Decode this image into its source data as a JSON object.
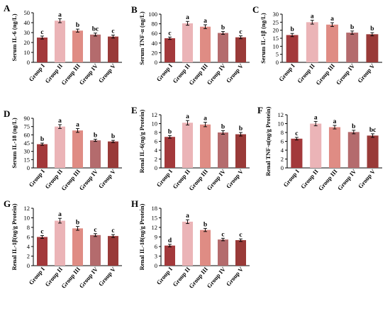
{
  "chart_data": [
    {
      "type": "bar",
      "panel": "A",
      "ylabel": "Serum IL-6 (ng/L)",
      "categories": [
        "Group I",
        "Group II",
        "Group III",
        "Group IV",
        "Group V"
      ],
      "values": [
        25,
        42,
        32,
        28,
        26
      ],
      "errors": [
        1.5,
        2,
        1.5,
        1.5,
        1.5
      ],
      "labels": [
        "c",
        "a",
        "b",
        "bc",
        "c"
      ],
      "ylim": [
        0,
        50
      ],
      "yticks": [
        0,
        10,
        20,
        30,
        40,
        50
      ]
    },
    {
      "type": "bar",
      "panel": "B",
      "ylabel": "Serum TNF-α (ng/L)",
      "categories": [
        "Group I",
        "Group II",
        "Group III",
        "Group IV",
        "Group V"
      ],
      "values": [
        50,
        81,
        74,
        61,
        52
      ],
      "errors": [
        2.5,
        4,
        4,
        3,
        3
      ],
      "labels": [
        "c",
        "a",
        "a",
        "b",
        "c"
      ],
      "ylim": [
        0,
        100
      ],
      "yticks": [
        0,
        20,
        40,
        60,
        80,
        100
      ]
    },
    {
      "type": "bar",
      "panel": "C",
      "ylabel": "Serum IL-1β (ng/L)",
      "categories": [
        "Group I",
        "Group II",
        "Group III",
        "Group IV",
        "Group V"
      ],
      "values": [
        17,
        25,
        23.5,
        18.5,
        17.5
      ],
      "errors": [
        1,
        1.2,
        1.2,
        1,
        1
      ],
      "labels": [
        "b",
        "a",
        "a",
        "b",
        "b"
      ],
      "ylim": [
        0,
        30
      ],
      "yticks": [
        0,
        5,
        10,
        15,
        20,
        25,
        30
      ]
    },
    {
      "type": "bar",
      "panel": "D",
      "ylabel": "Serum IL-18 (ng/L)",
      "categories": [
        "Group I",
        "Group II",
        "Group III",
        "Group IV",
        "Group V"
      ],
      "values": [
        43,
        75,
        68,
        50,
        48
      ],
      "errors": [
        2,
        3.5,
        3.5,
        2,
        2
      ],
      "labels": [
        "b",
        "a",
        "a",
        "b",
        "b"
      ],
      "ylim": [
        0,
        90
      ],
      "yticks": [
        0,
        15,
        30,
        45,
        60,
        75,
        90
      ]
    },
    {
      "type": "bar",
      "panel": "E",
      "ylabel": "Renal IL-6(ng/g Protein)",
      "categories": [
        "Group I",
        "Group II",
        "Group III",
        "Group IV",
        "Group V"
      ],
      "values": [
        7,
        10.2,
        9.8,
        8,
        7.6
      ],
      "errors": [
        0.3,
        0.5,
        0.5,
        0.4,
        0.4
      ],
      "labels": [
        "b",
        "a",
        "a",
        "b",
        "b"
      ],
      "ylim": [
        0,
        12
      ],
      "yticks": [
        0,
        2,
        4,
        6,
        8,
        10,
        12
      ]
    },
    {
      "type": "bar",
      "panel": "F",
      "ylabel": "Renal TNF-α(ng/g Protein)",
      "categories": [
        "Group I",
        "Group II",
        "Group III",
        "Group IV",
        "Group V"
      ],
      "values": [
        6.6,
        10,
        9.2,
        8.1,
        7.3
      ],
      "errors": [
        0.3,
        0.5,
        0.4,
        0.4,
        0.4
      ],
      "labels": [
        "c",
        "a",
        "a",
        "b",
        "bc"
      ],
      "ylim": [
        0,
        12
      ],
      "yticks": [
        0,
        2,
        4,
        6,
        8,
        10,
        12
      ]
    },
    {
      "type": "bar",
      "panel": "G",
      "ylabel": "Renal IL-1β(ng/g Protein)",
      "categories": [
        "Group I",
        "Group II",
        "Group III",
        "Group IV",
        "Group V"
      ],
      "values": [
        6,
        9.4,
        7.8,
        6.4,
        6.2
      ],
      "errors": [
        0.3,
        0.5,
        0.4,
        0.3,
        0.3
      ],
      "labels": [
        "c",
        "a",
        "b",
        "c",
        "c"
      ],
      "ylim": [
        0,
        12
      ],
      "yticks": [
        0,
        2,
        4,
        6,
        8,
        10,
        12
      ]
    },
    {
      "type": "bar",
      "panel": "H",
      "ylabel": "Renal IL-18(ng/g Protein)",
      "categories": [
        "Group I",
        "Group II",
        "Group III",
        "Group IV",
        "Group V"
      ],
      "values": [
        6.3,
        13.8,
        11.2,
        8.2,
        8
      ],
      "errors": [
        0.4,
        0.6,
        0.5,
        0.4,
        0.4
      ],
      "labels": [
        "d",
        "a",
        "b",
        "c",
        "c"
      ],
      "ylim": [
        0,
        18
      ],
      "yticks": [
        0,
        3,
        6,
        9,
        12,
        15,
        18
      ]
    }
  ],
  "colors": [
    "#a3393b",
    "#ebb4b7",
    "#df8c84",
    "#b46b6d",
    "#993a38"
  ]
}
